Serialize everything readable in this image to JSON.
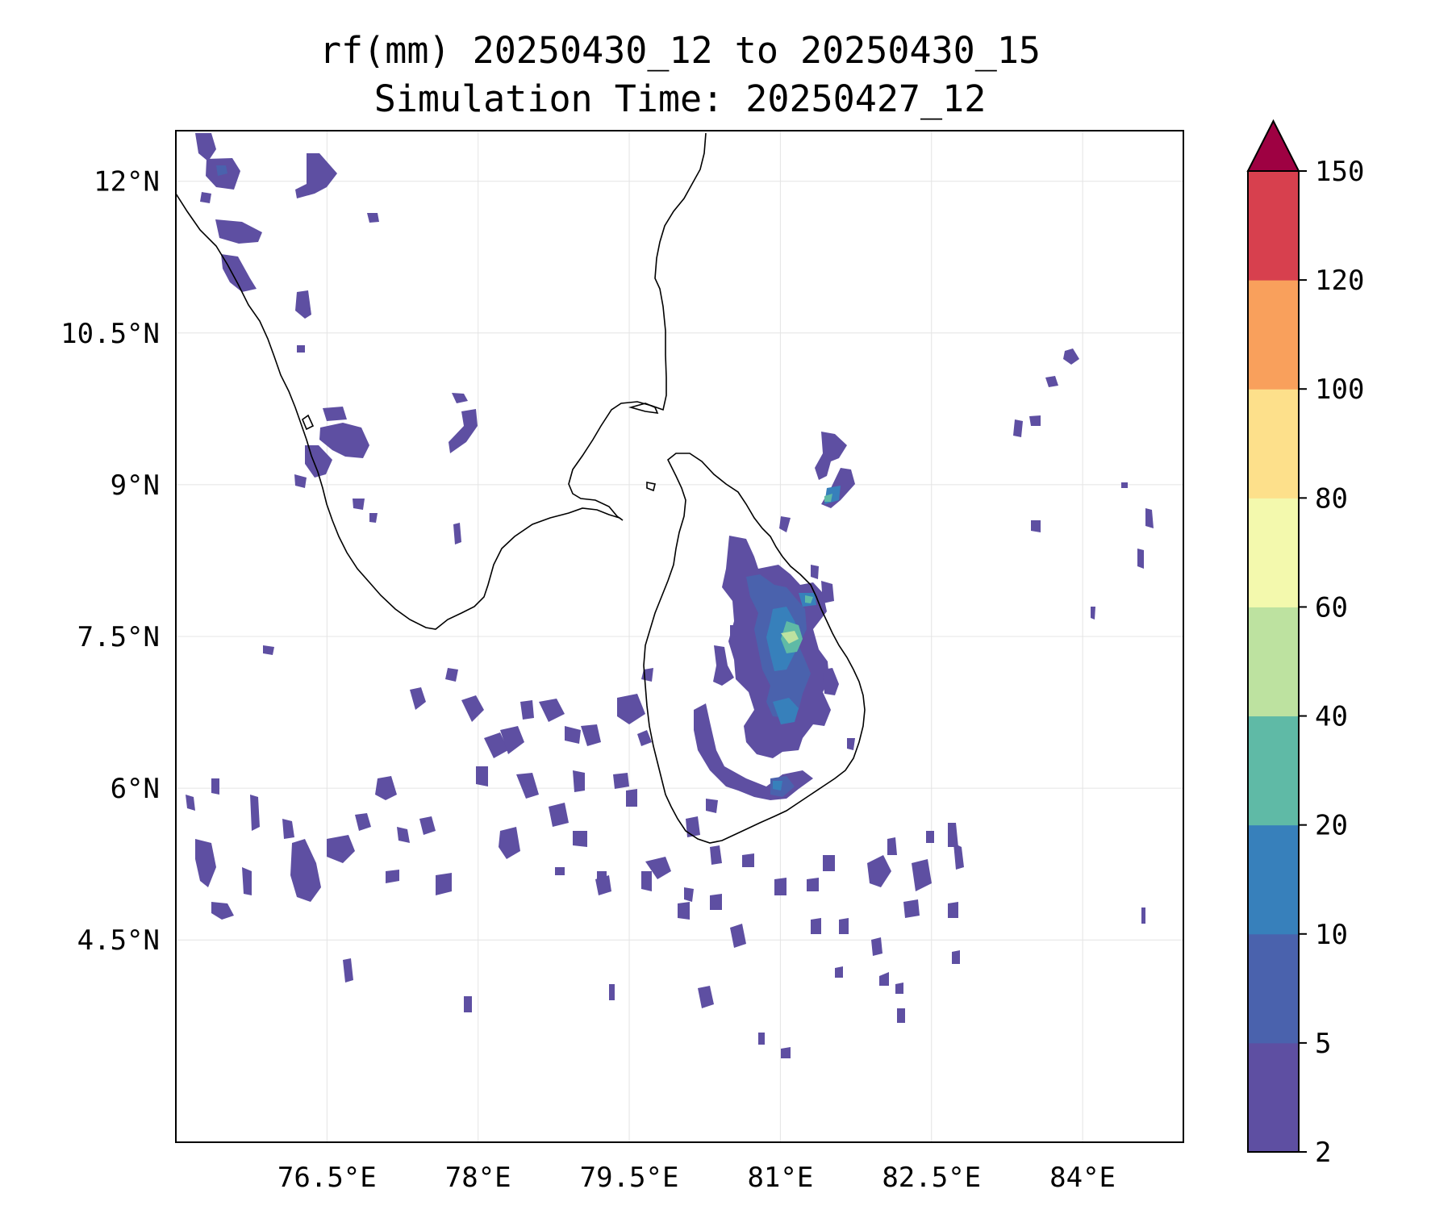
{
  "title_line1": "rf(mm) 20250430_12 to 20250430_15",
  "title_line2": "Simulation Time: 20250427_12",
  "map": {
    "lon_range": [
      75.0,
      85.0
    ],
    "lat_range": [
      2.5,
      12.5
    ],
    "x_ticks": [
      {
        "lon": 76.5,
        "label": "76.5°E"
      },
      {
        "lon": 78.0,
        "label": "78°E"
      },
      {
        "lon": 79.5,
        "label": "79.5°E"
      },
      {
        "lon": 81.0,
        "label": "81°E"
      },
      {
        "lon": 82.5,
        "label": "82.5°E"
      },
      {
        "lon": 84.0,
        "label": "84°E"
      }
    ],
    "y_ticks": [
      {
        "lat": 12.0,
        "label": "12°N"
      },
      {
        "lat": 10.5,
        "label": "10.5°N"
      },
      {
        "lat": 9.0,
        "label": "9°N"
      },
      {
        "lat": 7.5,
        "label": "7.5°N"
      },
      {
        "lat": 6.0,
        "label": "6°N"
      },
      {
        "lat": 4.5,
        "label": "4.5°N"
      }
    ],
    "grid": true,
    "coastline_color": "#000000",
    "fill_levels_colors": [
      "#5e4fa2",
      "#4a62ad",
      "#3780bb",
      "#5fbaa6",
      "#bde2a0",
      "#f3f9ad",
      "#fde08b",
      "#f9a05c",
      "#d7404e",
      "#9e0142"
    ]
  },
  "colorbar": {
    "levels": [
      2,
      5,
      10,
      20,
      40,
      60,
      80,
      100,
      120,
      150
    ],
    "labels": [
      "2",
      "5",
      "10",
      "20",
      "40",
      "60",
      "80",
      "100",
      "120",
      "150"
    ],
    "colors": [
      "#5e4fa2",
      "#4a62ad",
      "#3780bb",
      "#5fbaa6",
      "#bde2a0",
      "#f3f9ad",
      "#fde08b",
      "#f9a05c",
      "#d7404e"
    ],
    "extend_color": "#9e0142",
    "extend": "max"
  }
}
